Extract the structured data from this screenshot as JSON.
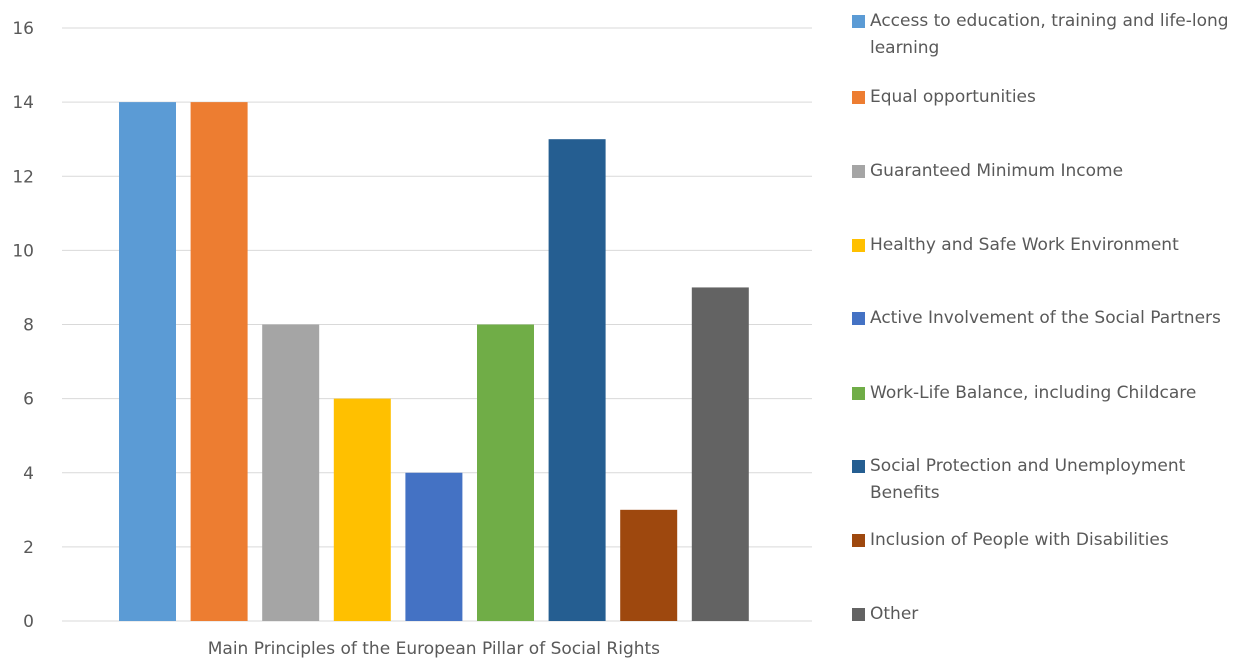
{
  "chart_data": {
    "type": "bar",
    "xlabel": "Main Principles of the European Pillar of Social Rights",
    "ylabel": "",
    "ylim": [
      0,
      16
    ],
    "yticks": [
      0,
      2,
      4,
      6,
      8,
      10,
      12,
      14,
      16
    ],
    "grid": true,
    "legend_position": "right",
    "series": [
      {
        "name": "Access to education, training and life-long learning",
        "values": [
          14
        ],
        "color": "#5B9BD5"
      },
      {
        "name": "Equal opportunities",
        "values": [
          14
        ],
        "color": "#ED7D31"
      },
      {
        "name": "Guaranteed Minimum Income",
        "values": [
          8
        ],
        "color": "#A5A5A5"
      },
      {
        "name": "Healthy and Safe Work Environment",
        "values": [
          6
        ],
        "color": "#FFC000"
      },
      {
        "name": "Active Involvement of the Social Partners",
        "values": [
          4
        ],
        "color": "#4472C4"
      },
      {
        "name": "Work-Life Balance, including Childcare",
        "values": [
          8
        ],
        "color": "#70AD47"
      },
      {
        "name": "Social Protection and Unemployment Benefits",
        "values": [
          13
        ],
        "color": "#255E91"
      },
      {
        "name": "Inclusion of People with Disabilities",
        "values": [
          3
        ],
        "color": "#9E480E"
      },
      {
        "name": "Other",
        "values": [
          9
        ],
        "color": "#636363"
      }
    ]
  }
}
